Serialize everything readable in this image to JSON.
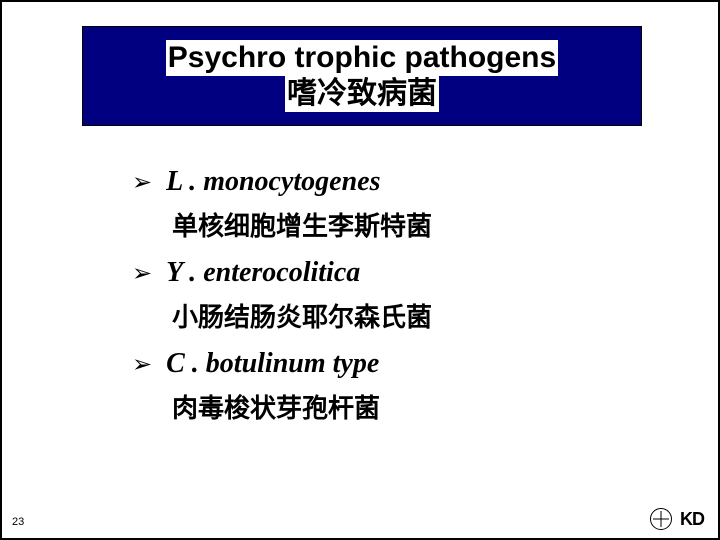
{
  "title": {
    "en": "Psychro trophic pathogens",
    "zh": "嗜冷致病菌"
  },
  "items": [
    {
      "en_prefix": "L . ",
      "en_main": "monocytogenes",
      "zh": "单核细胞增生李斯特菌"
    },
    {
      "en_prefix": "Y . ",
      "en_main": "enterocolitica",
      "zh": "小肠结肠炎耶尔森氏菌"
    },
    {
      "en_prefix": "C . ",
      "en_main": "botulinum type",
      "zh": "肉毒梭状芽孢杆菌"
    }
  ],
  "page_number": "23",
  "footer_text": "KD",
  "colors": {
    "title_bg": "#000080",
    "title_text_bg": "#ffffff",
    "text": "#000000",
    "page_bg": "#ffffff"
  }
}
